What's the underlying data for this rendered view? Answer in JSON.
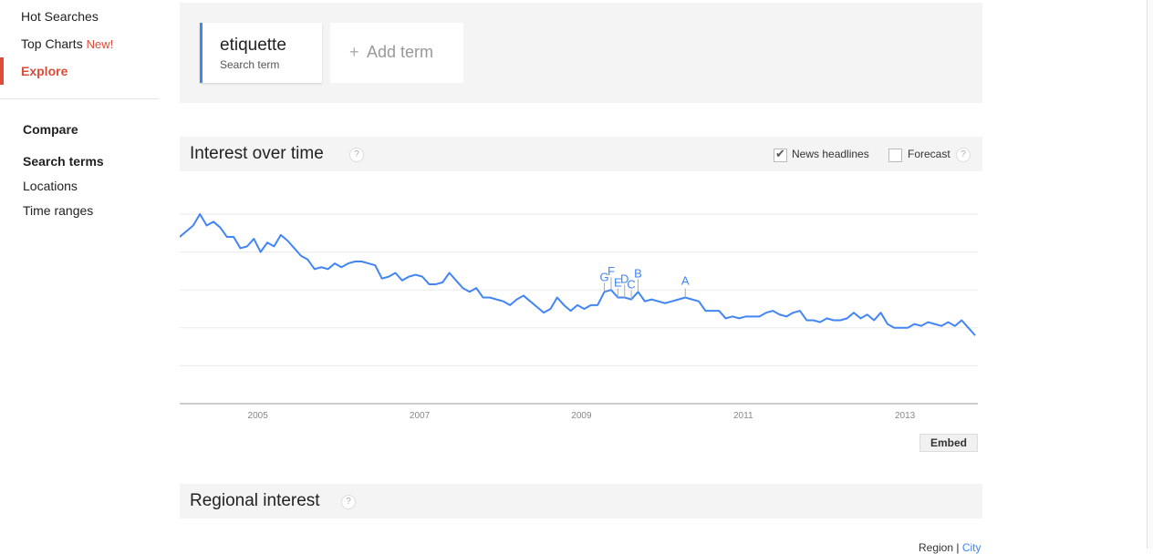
{
  "sidebar": {
    "items": [
      {
        "label": "Hot Searches"
      },
      {
        "label": "Top Charts",
        "badge": "New!"
      },
      {
        "label": "Explore",
        "active": true
      }
    ],
    "compare": {
      "heading": "Compare",
      "items": [
        {
          "label": "Search terms",
          "active": true
        },
        {
          "label": "Locations"
        },
        {
          "label": "Time ranges"
        }
      ]
    }
  },
  "terms": {
    "term": "etiquette",
    "term_sub": "Search term",
    "add_label": "Add term",
    "add_icon": "+"
  },
  "interest": {
    "title": "Interest over time",
    "help": "?",
    "news_label": "News headlines",
    "news_checked": true,
    "forecast_label": "Forecast",
    "forecast_checked": false,
    "embed_label": "Embed"
  },
  "regional": {
    "title": "Regional interest",
    "help": "?",
    "region_label": "Region",
    "separator": "|",
    "city_label": "City"
  },
  "colors": {
    "line": "#4285f4",
    "accent": "#dd4b39",
    "panel": "#f4f4f4"
  },
  "chart_data": {
    "type": "line",
    "title": "",
    "xlabel": "",
    "ylabel": "",
    "ylim": [
      0,
      100
    ],
    "grid": true,
    "x_ticks": [
      "2005",
      "2007",
      "2009",
      "2011",
      "2013"
    ],
    "x": [
      "2004-01",
      "2004-02",
      "2004-03",
      "2004-04",
      "2004-05",
      "2004-06",
      "2004-07",
      "2004-08",
      "2004-09",
      "2004-10",
      "2004-11",
      "2004-12",
      "2005-01",
      "2005-02",
      "2005-03",
      "2005-04",
      "2005-05",
      "2005-06",
      "2005-07",
      "2005-08",
      "2005-09",
      "2005-10",
      "2005-11",
      "2005-12",
      "2006-01",
      "2006-02",
      "2006-03",
      "2006-04",
      "2006-05",
      "2006-06",
      "2006-07",
      "2006-08",
      "2006-09",
      "2006-10",
      "2006-11",
      "2006-12",
      "2007-01",
      "2007-02",
      "2007-03",
      "2007-04",
      "2007-05",
      "2007-06",
      "2007-07",
      "2007-08",
      "2007-09",
      "2007-10",
      "2007-11",
      "2007-12",
      "2008-01",
      "2008-02",
      "2008-03",
      "2008-04",
      "2008-05",
      "2008-06",
      "2008-07",
      "2008-08",
      "2008-09",
      "2008-10",
      "2008-11",
      "2008-12",
      "2009-01",
      "2009-02",
      "2009-03",
      "2009-04",
      "2009-05",
      "2009-06",
      "2009-07",
      "2009-08",
      "2009-09",
      "2009-10",
      "2009-11",
      "2009-12",
      "2010-01",
      "2010-02",
      "2010-03",
      "2010-04",
      "2010-05",
      "2010-06",
      "2010-07",
      "2010-08",
      "2010-09",
      "2010-10",
      "2010-11",
      "2010-12",
      "2011-01",
      "2011-02",
      "2011-03",
      "2011-04",
      "2011-05",
      "2011-06",
      "2011-07",
      "2011-08",
      "2011-09",
      "2011-10",
      "2011-11",
      "2011-12",
      "2012-01",
      "2012-02",
      "2012-03",
      "2012-04",
      "2012-05",
      "2012-06",
      "2012-07",
      "2012-08",
      "2012-09",
      "2012-10",
      "2012-11",
      "2012-12",
      "2013-01",
      "2013-02",
      "2013-03",
      "2013-04",
      "2013-05",
      "2013-06",
      "2013-07",
      "2013-08",
      "2013-09",
      "2013-10",
      "2013-11"
    ],
    "series": [
      {
        "values": [
          88,
          91,
          94,
          100,
          94,
          96,
          93,
          88,
          88,
          82,
          83,
          87,
          80,
          85,
          83,
          89,
          86,
          82,
          78,
          76,
          71,
          72,
          71,
          74,
          72,
          74,
          75,
          75,
          74,
          73,
          66,
          67,
          69,
          65,
          67,
          68,
          67,
          63,
          63,
          64,
          69,
          65,
          61,
          59,
          61,
          56,
          56,
          55,
          54,
          52,
          55,
          57,
          54,
          51,
          48,
          50,
          56,
          52,
          49,
          52,
          50,
          52,
          52,
          59,
          60,
          56,
          56,
          55,
          59,
          54,
          55,
          54,
          53,
          54,
          55,
          56,
          55,
          54,
          49,
          49,
          49,
          45,
          46,
          45,
          46,
          46,
          46,
          48,
          49,
          47,
          46,
          48,
          49,
          44,
          44,
          43,
          45,
          44,
          44,
          45,
          48,
          45,
          47,
          44,
          48,
          42,
          40,
          40,
          40,
          42,
          41,
          43,
          42,
          41,
          43,
          41,
          44,
          40,
          36
        ]
      }
    ],
    "annotations": [
      {
        "label": "G",
        "x": "2009-04"
      },
      {
        "label": "F",
        "x": "2009-05"
      },
      {
        "label": "E",
        "x": "2009-06"
      },
      {
        "label": "D",
        "x": "2009-07"
      },
      {
        "label": "C",
        "x": "2009-08"
      },
      {
        "label": "B",
        "x": "2009-09"
      },
      {
        "label": "A",
        "x": "2010-04"
      }
    ]
  }
}
